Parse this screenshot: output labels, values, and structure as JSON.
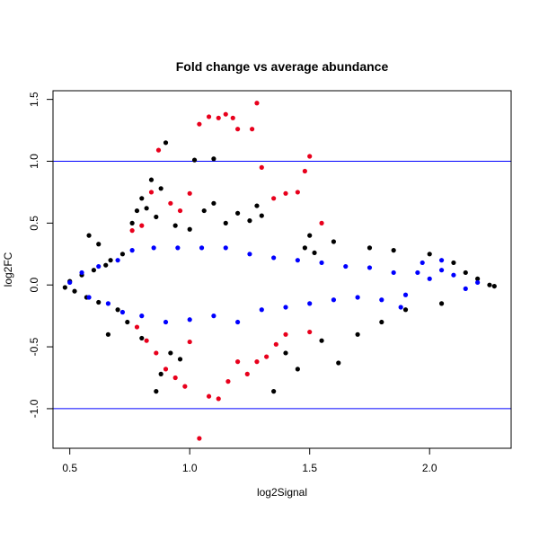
{
  "chart_data": {
    "type": "scatter",
    "title": "Fold change vs average abundance",
    "xlabel": "log2Signal",
    "ylabel": "log2FC",
    "xlim": [
      0.43,
      2.34
    ],
    "ylim": [
      -1.32,
      1.57
    ],
    "x_ticks": [
      0.5,
      1.0,
      1.5,
      2.0
    ],
    "x_tick_labels": [
      "0.5",
      "1.0",
      "1.5",
      "2.0"
    ],
    "y_ticks": [
      -1.0,
      -0.5,
      0.0,
      0.5,
      1.0,
      1.5
    ],
    "y_tick_labels": [
      "-1.0",
      "-0.5",
      "0.0",
      "0.5",
      "1.0",
      "1.5"
    ],
    "grid": false,
    "legend": "none",
    "reference_lines": [
      {
        "y": 1.0,
        "color": "#0000ff"
      },
      {
        "y": -1.0,
        "color": "#0000ff"
      }
    ],
    "series": [
      {
        "color": "#000000",
        "points": [
          [
            0.48,
            -0.02
          ],
          [
            0.5,
            0.03
          ],
          [
            0.52,
            -0.05
          ],
          [
            0.55,
            0.08
          ],
          [
            0.57,
            -0.1
          ],
          [
            0.6,
            0.12
          ],
          [
            0.62,
            -0.14
          ],
          [
            0.65,
            0.16
          ],
          [
            0.67,
            0.2
          ],
          [
            0.7,
            -0.2
          ],
          [
            0.72,
            0.25
          ],
          [
            0.74,
            -0.3
          ],
          [
            0.76,
            0.5
          ],
          [
            0.78,
            0.6
          ],
          [
            0.8,
            0.7
          ],
          [
            0.82,
            0.62
          ],
          [
            0.84,
            0.85
          ],
          [
            0.86,
            0.55
          ],
          [
            0.88,
            0.78
          ],
          [
            0.9,
            1.15
          ],
          [
            0.92,
            -0.55
          ],
          [
            0.88,
            -0.72
          ],
          [
            0.86,
            -0.86
          ],
          [
            0.94,
            0.48
          ],
          [
            0.96,
            -0.6
          ],
          [
            1.0,
            0.45
          ],
          [
            1.02,
            1.01
          ],
          [
            1.06,
            0.6
          ],
          [
            1.1,
            1.02
          ],
          [
            1.15,
            0.5
          ],
          [
            1.2,
            0.58
          ],
          [
            1.25,
            0.52
          ],
          [
            1.3,
            0.56
          ],
          [
            1.35,
            -0.86
          ],
          [
            1.4,
            -0.55
          ],
          [
            1.45,
            -0.68
          ],
          [
            1.5,
            0.4
          ],
          [
            1.55,
            -0.45
          ],
          [
            1.6,
            0.35
          ],
          [
            1.7,
            -0.4
          ],
          [
            1.75,
            0.3
          ],
          [
            1.8,
            -0.3
          ],
          [
            1.85,
            0.28
          ],
          [
            1.9,
            -0.2
          ],
          [
            2.0,
            0.25
          ],
          [
            2.05,
            -0.15
          ],
          [
            2.1,
            0.18
          ],
          [
            2.15,
            0.1
          ],
          [
            2.2,
            0.05
          ],
          [
            2.25,
            0.0
          ],
          [
            2.27,
            -0.01
          ],
          [
            1.62,
            -0.63
          ],
          [
            1.1,
            0.66
          ],
          [
            0.58,
            0.4
          ],
          [
            0.62,
            0.33
          ],
          [
            0.66,
            -0.4
          ],
          [
            0.8,
            -0.43
          ],
          [
            1.28,
            0.64
          ],
          [
            1.48,
            0.3
          ],
          [
            1.52,
            0.26
          ]
        ]
      },
      {
        "color": "#0000ff",
        "points": [
          [
            0.5,
            0.02
          ],
          [
            0.55,
            0.1
          ],
          [
            0.58,
            -0.1
          ],
          [
            0.62,
            0.15
          ],
          [
            0.66,
            -0.15
          ],
          [
            0.7,
            0.2
          ],
          [
            0.72,
            -0.22
          ],
          [
            0.76,
            0.28
          ],
          [
            0.8,
            -0.25
          ],
          [
            0.85,
            0.3
          ],
          [
            0.9,
            -0.3
          ],
          [
            0.95,
            0.3
          ],
          [
            1.0,
            -0.28
          ],
          [
            1.05,
            0.3
          ],
          [
            1.1,
            -0.25
          ],
          [
            1.15,
            0.3
          ],
          [
            1.2,
            -0.3
          ],
          [
            1.25,
            0.25
          ],
          [
            1.3,
            -0.2
          ],
          [
            1.35,
            0.22
          ],
          [
            1.4,
            -0.18
          ],
          [
            1.45,
            0.2
          ],
          [
            1.5,
            -0.15
          ],
          [
            1.55,
            0.18
          ],
          [
            1.6,
            -0.12
          ],
          [
            1.65,
            0.15
          ],
          [
            1.7,
            -0.1
          ],
          [
            1.75,
            0.14
          ],
          [
            1.8,
            -0.12
          ],
          [
            1.85,
            0.1
          ],
          [
            1.9,
            -0.08
          ],
          [
            1.95,
            0.1
          ],
          [
            2.0,
            0.05
          ],
          [
            2.05,
            0.12
          ],
          [
            2.1,
            0.08
          ],
          [
            2.15,
            -0.03
          ],
          [
            2.2,
            0.02
          ],
          [
            2.05,
            0.2
          ],
          [
            1.97,
            0.18
          ],
          [
            1.88,
            -0.18
          ]
        ]
      },
      {
        "color": "#e8001c",
        "points": [
          [
            0.76,
            0.44
          ],
          [
            0.8,
            0.48
          ],
          [
            0.84,
            0.75
          ],
          [
            0.87,
            1.09
          ],
          [
            0.92,
            0.66
          ],
          [
            0.96,
            0.6
          ],
          [
            1.0,
            0.74
          ],
          [
            1.04,
            1.3
          ],
          [
            1.08,
            1.36
          ],
          [
            1.12,
            1.35
          ],
          [
            1.15,
            1.38
          ],
          [
            1.18,
            1.35
          ],
          [
            1.2,
            1.26
          ],
          [
            1.26,
            1.26
          ],
          [
            1.28,
            1.47
          ],
          [
            1.3,
            0.95
          ],
          [
            1.35,
            0.7
          ],
          [
            1.4,
            0.74
          ],
          [
            1.45,
            0.75
          ],
          [
            1.48,
            0.92
          ],
          [
            1.5,
            1.04
          ],
          [
            1.55,
            0.5
          ],
          [
            0.78,
            -0.34
          ],
          [
            0.82,
            -0.45
          ],
          [
            0.86,
            -0.55
          ],
          [
            0.9,
            -0.68
          ],
          [
            0.94,
            -0.75
          ],
          [
            0.98,
            -0.82
          ],
          [
            1.0,
            -0.46
          ],
          [
            1.04,
            -1.24
          ],
          [
            1.08,
            -0.9
          ],
          [
            1.12,
            -0.92
          ],
          [
            1.16,
            -0.78
          ],
          [
            1.2,
            -0.62
          ],
          [
            1.24,
            -0.72
          ],
          [
            1.28,
            -0.62
          ],
          [
            1.32,
            -0.58
          ],
          [
            1.36,
            -0.48
          ],
          [
            1.4,
            -0.4
          ],
          [
            1.5,
            -0.38
          ]
        ]
      }
    ]
  }
}
